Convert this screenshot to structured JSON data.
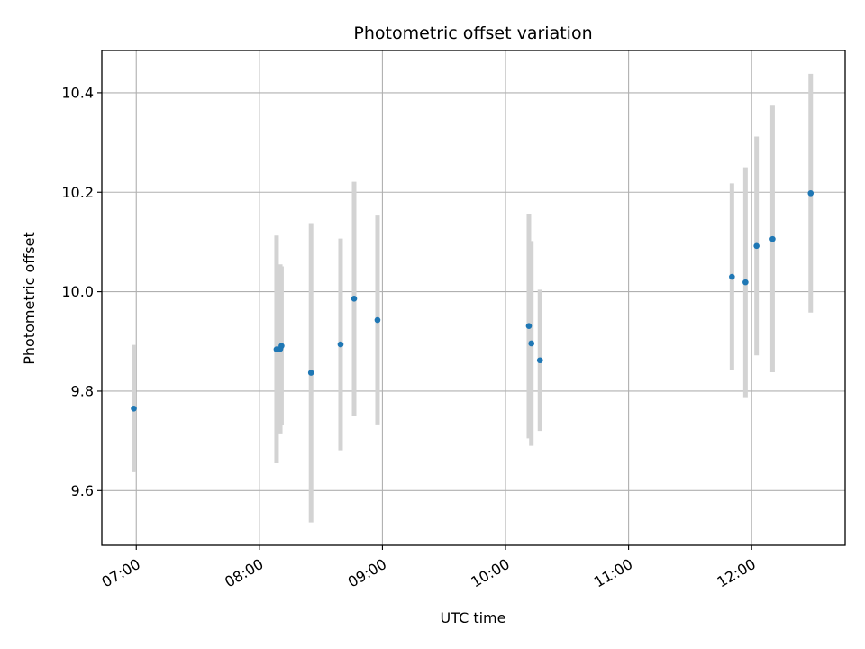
{
  "chart_data": {
    "type": "scatter",
    "title": "Photometric offset variation",
    "xlabel": "UTC time",
    "ylabel": "Photometric offset",
    "x_unit": "hours UTC",
    "xlim": [
      6.72,
      12.76
    ],
    "ylim": [
      9.49,
      10.485
    ],
    "x_ticks": [
      {
        "value": 7.0,
        "label": "07:00"
      },
      {
        "value": 8.0,
        "label": "08:00"
      },
      {
        "value": 9.0,
        "label": "09:00"
      },
      {
        "value": 10.0,
        "label": "10:00"
      },
      {
        "value": 11.0,
        "label": "11:00"
      },
      {
        "value": 12.0,
        "label": "12:00"
      }
    ],
    "y_ticks": [
      {
        "value": 9.6,
        "label": "9.6"
      },
      {
        "value": 9.8,
        "label": "9.8"
      },
      {
        "value": 10.0,
        "label": "10.0"
      },
      {
        "value": 10.2,
        "label": "10.2"
      },
      {
        "value": 10.4,
        "label": "10.4"
      }
    ],
    "grid": true,
    "point_color": "#1f77b4",
    "errorbar_color": "#d3d3d3",
    "points": [
      {
        "x": 6.98,
        "y": 9.765,
        "low": 9.637,
        "high": 9.893
      },
      {
        "x": 8.14,
        "y": 9.884,
        "low": 9.655,
        "high": 10.113
      },
      {
        "x": 8.17,
        "y": 9.885,
        "low": 9.715,
        "high": 10.055
      },
      {
        "x": 8.18,
        "y": 9.891,
        "low": 9.731,
        "high": 10.051
      },
      {
        "x": 8.42,
        "y": 9.837,
        "low": 9.536,
        "high": 10.138
      },
      {
        "x": 8.66,
        "y": 9.894,
        "low": 9.681,
        "high": 10.107
      },
      {
        "x": 8.77,
        "y": 9.986,
        "low": 9.751,
        "high": 10.221
      },
      {
        "x": 8.96,
        "y": 9.943,
        "low": 9.733,
        "high": 10.153
      },
      {
        "x": 10.19,
        "y": 9.931,
        "low": 9.705,
        "high": 10.157
      },
      {
        "x": 10.21,
        "y": 9.896,
        "low": 9.69,
        "high": 10.102
      },
      {
        "x": 10.28,
        "y": 9.862,
        "low": 9.72,
        "high": 10.004
      },
      {
        "x": 11.84,
        "y": 10.03,
        "low": 9.842,
        "high": 10.218
      },
      {
        "x": 11.95,
        "y": 10.019,
        "low": 9.788,
        "high": 10.25
      },
      {
        "x": 12.04,
        "y": 10.092,
        "low": 9.872,
        "high": 10.312
      },
      {
        "x": 12.17,
        "y": 10.106,
        "low": 9.838,
        "high": 10.374
      },
      {
        "x": 12.48,
        "y": 10.198,
        "low": 9.958,
        "high": 10.438
      }
    ]
  }
}
